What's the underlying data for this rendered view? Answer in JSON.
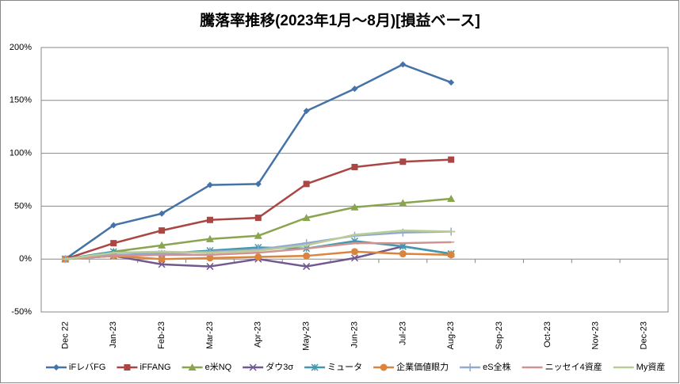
{
  "chart_data": {
    "type": "line",
    "title": "騰落率推移(2023年1月～8月)[損益ベース]",
    "categories": [
      "Dec 22",
      "Jan-23",
      "Feb-23",
      "Mar-23",
      "Apr-23",
      "May-23",
      "Jun-23",
      "Jul-23",
      "Aug-23",
      "Sep-23",
      "Oct-23",
      "Nov-23",
      "Dec-23"
    ],
    "ylim": [
      -50,
      200
    ],
    "yticks": [
      {
        "value": -50,
        "label": "-50%"
      },
      {
        "value": 0,
        "label": "0%"
      },
      {
        "value": 50,
        "label": "50%"
      },
      {
        "value": 100,
        "label": "100%"
      },
      {
        "value": 150,
        "label": "150%"
      },
      {
        "value": 200,
        "label": "200%"
      }
    ],
    "grid": true,
    "legend": "bottom",
    "series": [
      {
        "name": "iFレバFG",
        "color": "#4572a7",
        "marker": "diamond",
        "values": [
          0,
          32,
          43,
          70,
          71,
          140,
          161,
          184,
          167,
          null,
          null,
          null,
          null
        ]
      },
      {
        "name": "iFFANG",
        "color": "#aa4643",
        "marker": "square",
        "values": [
          0,
          15,
          27,
          37,
          39,
          71,
          87,
          92,
          94,
          null,
          null,
          null,
          null
        ]
      },
      {
        "name": "e米NQ",
        "color": "#89a54e",
        "marker": "triangle",
        "values": [
          0,
          7,
          13,
          19,
          22,
          39,
          49,
          53,
          57,
          null,
          null,
          null,
          null
        ]
      },
      {
        "name": "ダウ3σ",
        "color": "#71588f",
        "marker": "x",
        "values": [
          0,
          3,
          -5,
          -7,
          0,
          -7,
          1,
          12,
          5,
          null,
          null,
          null,
          null
        ]
      },
      {
        "name": "ミュータ",
        "color": "#4198af",
        "marker": "star",
        "values": [
          0,
          7,
          5,
          8,
          11,
          10,
          17,
          12,
          5,
          null,
          null,
          null,
          null
        ]
      },
      {
        "name": "企業価値眼力",
        "color": "#db843d",
        "marker": "circle",
        "values": [
          0,
          3,
          0,
          1,
          2,
          3,
          7,
          5,
          4,
          null,
          null,
          null,
          null
        ]
      },
      {
        "name": "eS全株",
        "color": "#93a9cf",
        "marker": "plus",
        "values": [
          0,
          4,
          5,
          7,
          9,
          15,
          22,
          25,
          26,
          null,
          null,
          null,
          null
        ]
      },
      {
        "name": "ニッセイ4資産",
        "color": "#d19392",
        "marker": "none",
        "values": [
          0,
          3,
          4,
          4,
          6,
          10,
          15,
          15,
          16,
          null,
          null,
          null,
          null
        ]
      },
      {
        "name": "My資産",
        "color": "#b9cd96",
        "marker": "none",
        "values": [
          0,
          6,
          7,
          6,
          8,
          13,
          23,
          27,
          26,
          null,
          null,
          null,
          null
        ]
      }
    ]
  }
}
